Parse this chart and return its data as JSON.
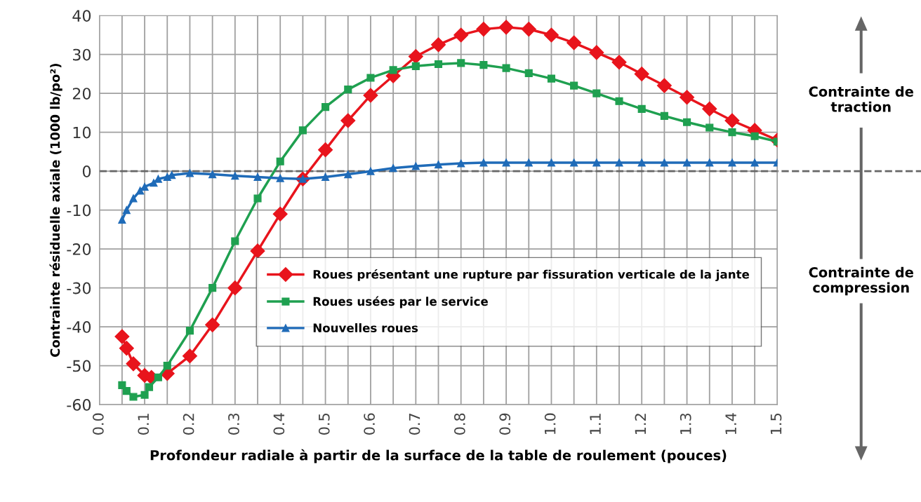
{
  "chart_data": {
    "type": "line",
    "xlabel": "Profondeur radiale à partir de la surface de la table de roulement (pouces)",
    "ylabel": "Contrainte résiduelle axiale (1000 lb/po²)",
    "xlim": [
      0,
      1.5
    ],
    "ylim": [
      -60,
      40
    ],
    "xticks": [
      {
        "value": 0,
        "label": "0.0"
      },
      {
        "value": 0.05,
        "label": null
      },
      {
        "value": 0.1,
        "label": "0.1"
      },
      {
        "value": 0.15,
        "label": null
      },
      {
        "value": 0.2,
        "label": "0.2"
      },
      {
        "value": 0.25,
        "label": null
      },
      {
        "value": 0.3,
        "label": "0.3"
      },
      {
        "value": 0.35,
        "label": null
      },
      {
        "value": 0.4,
        "label": "0.4"
      },
      {
        "value": 0.45,
        "label": null
      },
      {
        "value": 0.5,
        "label": "0.5"
      },
      {
        "value": 0.55,
        "label": null
      },
      {
        "value": 0.6,
        "label": "0.6"
      },
      {
        "value": 0.65,
        "label": null
      },
      {
        "value": 0.7,
        "label": "0.7"
      },
      {
        "value": 0.75,
        "label": null
      },
      {
        "value": 0.8,
        "label": "0.8"
      },
      {
        "value": 0.85,
        "label": null
      },
      {
        "value": 0.9,
        "label": "0.9"
      },
      {
        "value": 0.95,
        "label": null
      },
      {
        "value": 1.0,
        "label": "1.0"
      },
      {
        "value": 1.05,
        "label": null
      },
      {
        "value": 1.1,
        "label": "1.1"
      },
      {
        "value": 1.15,
        "label": null
      },
      {
        "value": 1.2,
        "label": "1.2"
      },
      {
        "value": 1.25,
        "label": null
      },
      {
        "value": 1.3,
        "label": "1.3"
      },
      {
        "value": 1.35,
        "label": null
      },
      {
        "value": 1.4,
        "label": "1.4"
      },
      {
        "value": 1.45,
        "label": null
      },
      {
        "value": 1.5,
        "label": "1.5"
      }
    ],
    "yticks": [
      40,
      30,
      20,
      10,
      0,
      -10,
      -20,
      -30,
      -40,
      -50,
      -60
    ],
    "grid": true,
    "legend": "bottom right",
    "line_style": "solid",
    "ref_lines": [
      {
        "axis": "y",
        "value": 0,
        "line_style": "dashed",
        "color": "#666666"
      }
    ],
    "annotations": [
      "Contrainte de traction",
      "Contrainte de compression"
    ],
    "series": [
      {
        "name": "Roues présentant une rupture par fissuration verticale de la jante",
        "color": "#e8141c",
        "marker": "diamond",
        "x": [
          0.05,
          0.06,
          0.075,
          0.1,
          0.115,
          0.15,
          0.2,
          0.25,
          0.3,
          0.35,
          0.4,
          0.45,
          0.5,
          0.55,
          0.6,
          0.65,
          0.7,
          0.75,
          0.8,
          0.85,
          0.9,
          0.95,
          1.0,
          1.05,
          1.1,
          1.15,
          1.2,
          1.25,
          1.3,
          1.35,
          1.4,
          1.45,
          1.5
        ],
        "values": [
          -42.5,
          -45.5,
          -49.5,
          -52.5,
          -53,
          -52,
          -47.5,
          -39.5,
          -30,
          -20.5,
          -11,
          -2,
          5.5,
          13,
          19.5,
          24.5,
          29.5,
          32.5,
          35,
          36.5,
          37,
          36.5,
          35,
          33,
          30.5,
          28,
          25,
          22,
          19,
          16,
          13,
          10.5,
          8
        ]
      },
      {
        "name": "Roues usées par le service",
        "color": "#1fa050",
        "marker": "square",
        "x": [
          0.05,
          0.06,
          0.075,
          0.1,
          0.11,
          0.13,
          0.15,
          0.2,
          0.25,
          0.3,
          0.35,
          0.4,
          0.45,
          0.5,
          0.55,
          0.6,
          0.65,
          0.7,
          0.75,
          0.8,
          0.85,
          0.9,
          0.95,
          1.0,
          1.05,
          1.1,
          1.15,
          1.2,
          1.25,
          1.3,
          1.35,
          1.4,
          1.45,
          1.5
        ],
        "values": [
          -55,
          -56.5,
          -58,
          -57.5,
          -55.5,
          -53,
          -50,
          -41,
          -30,
          -18,
          -7,
          2.5,
          10.5,
          16.5,
          21,
          24,
          26,
          27,
          27.5,
          27.8,
          27.3,
          26.5,
          25.2,
          23.8,
          22,
          20,
          18,
          16,
          14.2,
          12.6,
          11.2,
          10,
          9,
          7.6
        ]
      },
      {
        "name": "Nouvelles roues",
        "color": "#1f6bb8",
        "marker": "triangle",
        "x": [
          0.05,
          0.06,
          0.075,
          0.09,
          0.1,
          0.12,
          0.13,
          0.15,
          0.16,
          0.2,
          0.25,
          0.3,
          0.35,
          0.4,
          0.45,
          0.5,
          0.55,
          0.6,
          0.65,
          0.7,
          0.75,
          0.8,
          0.85,
          0.9,
          0.95,
          1.0,
          1.05,
          1.1,
          1.15,
          1.2,
          1.25,
          1.3,
          1.35,
          1.4,
          1.45,
          1.5
        ],
        "values": [
          -12.5,
          -10,
          -7,
          -5,
          -4,
          -3,
          -2,
          -1.5,
          -1,
          -0.5,
          -0.8,
          -1.2,
          -1.5,
          -1.8,
          -2,
          -1.5,
          -0.8,
          0,
          0.8,
          1.3,
          1.7,
          2,
          2.2,
          2.2,
          2.2,
          2.2,
          2.2,
          2.2,
          2.2,
          2.2,
          2.2,
          2.2,
          2.2,
          2.2,
          2.2,
          2.2
        ]
      }
    ]
  }
}
